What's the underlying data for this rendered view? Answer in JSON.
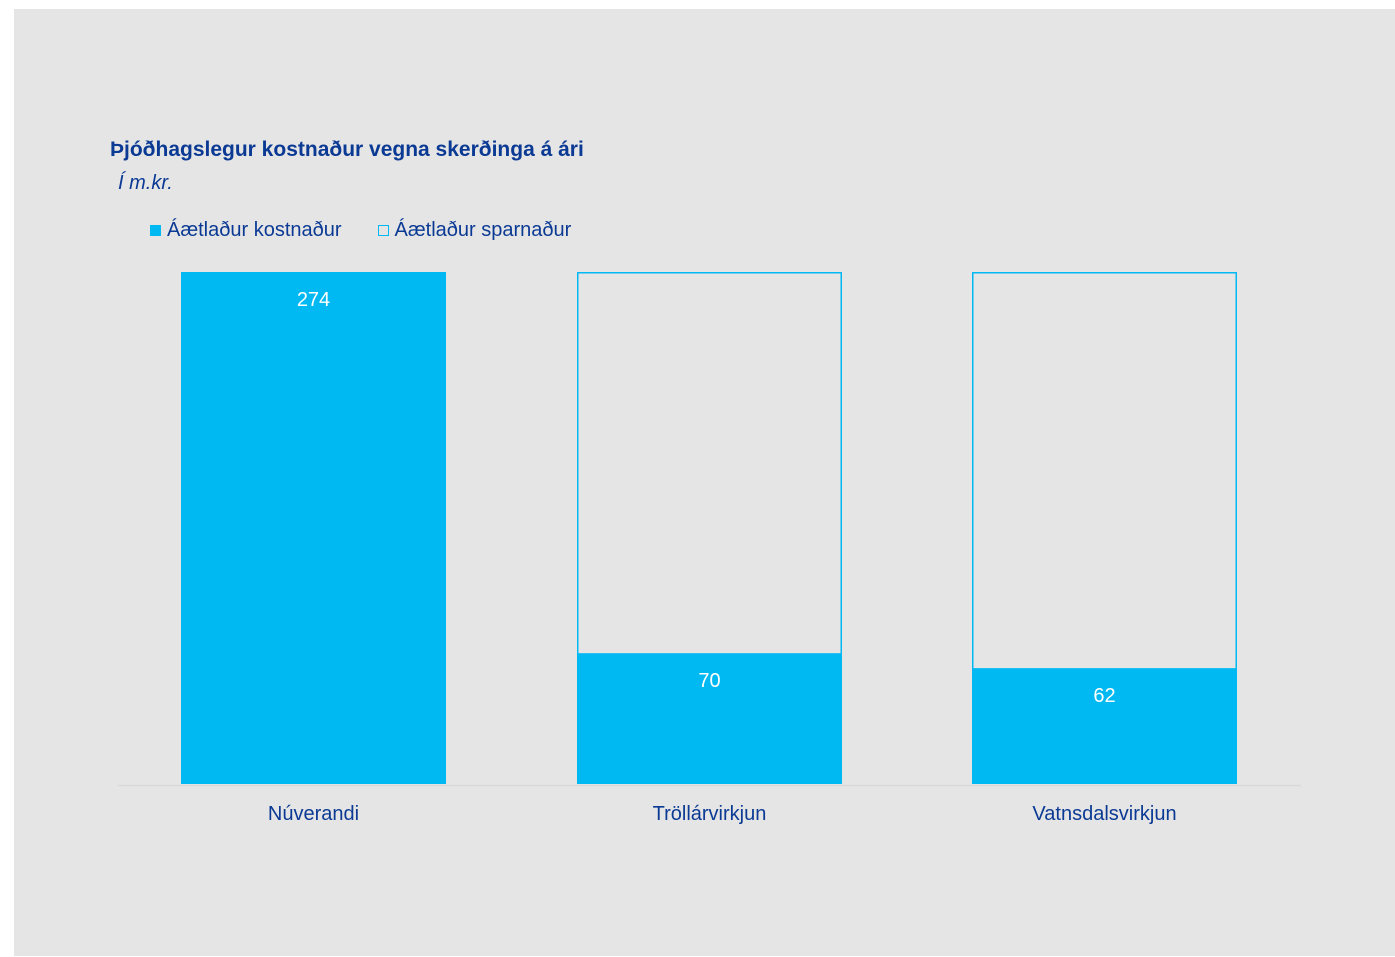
{
  "chart_data": {
    "type": "bar",
    "title": "Þjóðhagslegur kostnaður vegna skerðinga á ári",
    "subtitle": "Í m.kr.",
    "categories": [
      "Núverandi",
      "Tröllárvirkjun",
      "Vatnsdalsvirkjun"
    ],
    "series": [
      {
        "name": "Áætlaður kostnaður",
        "values": [
          274,
          70,
          62
        ],
        "data_labels": [
          "274",
          "70",
          "62"
        ],
        "style": "filled"
      },
      {
        "name": "Áætlaður sparnaður",
        "values": [
          0,
          204,
          212
        ],
        "style": "outline"
      }
    ],
    "stacked": true,
    "ylim": [
      0,
      274
    ],
    "grid": false,
    "legend_position": "top-left",
    "colors": {
      "bar_fill": "#00b8f2",
      "text": "#0b3a94",
      "data_label": "#ffffff",
      "background": "#e5e5e5",
      "axis": "#d9d9d9"
    }
  }
}
